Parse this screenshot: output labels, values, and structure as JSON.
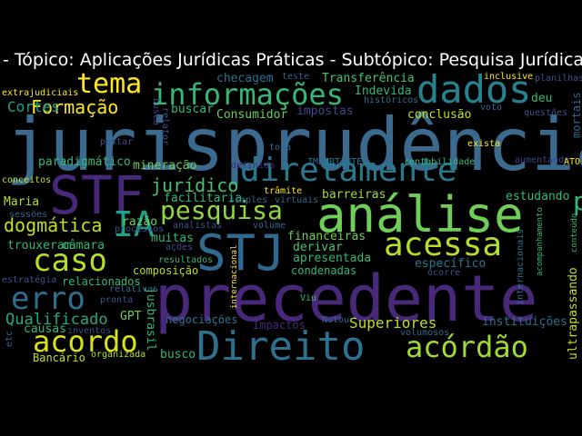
{
  "title": "- Tópico: Aplicações Jurídicas Práticas - Subtópico: Pesquisa Jurídica",
  "colors": {
    "background": "#000000",
    "title_text": "#ffffff",
    "palette": [
      "#3b528b",
      "#482878",
      "#26828e",
      "#35b779",
      "#6ece58",
      "#b5de2b",
      "#fde725",
      "#31688e"
    ]
  },
  "words": [
    {
      "text": "jurisprudência",
      "color": "#3b6a8f"
    },
    {
      "text": "precedente",
      "color": "#482878"
    },
    {
      "text": "análise",
      "color": "#6ece58"
    },
    {
      "text": "STF",
      "color": "#482878"
    },
    {
      "text": "STJ",
      "color": "#31688e"
    },
    {
      "text": "Direito",
      "color": "#2c728e"
    },
    {
      "text": "dados",
      "color": "#26828e"
    },
    {
      "text": "diretamente",
      "color": "#2a788e"
    },
    {
      "text": "informações",
      "color": "#35b779"
    },
    {
      "text": "acessa",
      "color": "#b5de2b"
    },
    {
      "text": "acordo",
      "color": "#d8e219"
    },
    {
      "text": "acórdão",
      "color": "#a0da39"
    },
    {
      "text": "caso",
      "color": "#b5de2b"
    },
    {
      "text": "erro",
      "color": "#2e6e8e"
    },
    {
      "text": "IA",
      "color": "#1fa188"
    },
    {
      "text": "tema",
      "color": "#fde725"
    },
    {
      "text": "pesquisa",
      "color": "#90d743"
    },
    {
      "text": "prompt",
      "color": "#35b779"
    },
    {
      "text": "jurídico",
      "color": "#4ac16d"
    },
    {
      "text": "dogmática",
      "color": "#c2df23"
    },
    {
      "text": "Formação",
      "color": "#fde725"
    },
    {
      "text": "Cortes",
      "color": "#1f9e89"
    },
    {
      "text": "Qualificado",
      "color": "#22a884"
    },
    {
      "text": "Superiores",
      "color": "#bddf26"
    },
    {
      "text": "Transferência",
      "color": "#4ac16d"
    },
    {
      "text": "Indevida",
      "color": "#35b779"
    },
    {
      "text": "checagem",
      "color": "#2c728e"
    },
    {
      "text": "teste",
      "color": "#355f8d"
    },
    {
      "text": "inclusive",
      "color": "#fde725"
    },
    {
      "text": "planilhas",
      "color": "#3b528b"
    },
    {
      "text": "extrajudiciais",
      "color": "#fde725"
    },
    {
      "text": "buscar",
      "color": "#35b779"
    },
    {
      "text": "Consumidor",
      "color": "#6ece58"
    },
    {
      "text": "impostas",
      "color": "#3e4a89"
    },
    {
      "text": "conclusão",
      "color": "#c2df23"
    },
    {
      "text": "voto",
      "color": "#31688e"
    },
    {
      "text": "questões",
      "color": "#3b528b"
    },
    {
      "text": "mortais",
      "color": "#31688e"
    },
    {
      "text": "deu",
      "color": "#35b779"
    },
    {
      "text": "históricos",
      "color": "#2c728e"
    },
    {
      "text": "busca",
      "color": "#414487"
    },
    {
      "text": "relator",
      "color": "#3b528b"
    },
    {
      "text": "postar",
      "color": "#3b528b"
    },
    {
      "text": "topa",
      "color": "#31688e"
    },
    {
      "text": "exista",
      "color": "#fde725"
    },
    {
      "text": "aumentando",
      "color": "#404688"
    },
    {
      "text": "paradigmático",
      "color": "#35b779"
    },
    {
      "text": "mineração",
      "color": "#6ece58"
    },
    {
      "text": "definido",
      "color": "#482878"
    },
    {
      "text": "IMPORTANTE",
      "color": "#2c728e"
    },
    {
      "text": "rentabilidade",
      "color": "#35b779"
    },
    {
      "text": "ATO",
      "color": "#fde725"
    },
    {
      "text": "conceitos",
      "color": "#c2df23"
    },
    {
      "text": "facilitaria",
      "color": "#35b779"
    },
    {
      "text": "trâmite",
      "color": "#fde725"
    },
    {
      "text": "simples",
      "color": "#31688e"
    },
    {
      "text": "virtuais",
      "color": "#31688e"
    },
    {
      "text": "barreiras",
      "color": "#a0da39"
    },
    {
      "text": "estudando",
      "color": "#35b779"
    },
    {
      "text": "Maria",
      "color": "#b5de2b"
    },
    {
      "text": "sessões",
      "color": "#31688e"
    },
    {
      "text": "razão",
      "color": "#6ece58"
    },
    {
      "text": "processos",
      "color": "#3b528b"
    },
    {
      "text": "analistas",
      "color": "#3b528b"
    },
    {
      "text": "volume",
      "color": "#31688e"
    },
    {
      "text": "financeiras",
      "color": "#6ece58"
    },
    {
      "text": "derivar",
      "color": "#4ac16d"
    },
    {
      "text": "apresentada",
      "color": "#35b779"
    },
    {
      "text": "específico",
      "color": "#2a788e"
    },
    {
      "text": "condenadas",
      "color": "#35b779"
    },
    {
      "text": "ocorre",
      "color": "#3b528b"
    },
    {
      "text": "trouxeram",
      "color": "#35b779"
    },
    {
      "text": "câmara",
      "color": "#35b779"
    },
    {
      "text": "muitas",
      "color": "#35b779"
    },
    {
      "text": "ações",
      "color": "#3b528b"
    },
    {
      "text": "resultados",
      "color": "#35b779"
    },
    {
      "text": "composição",
      "color": "#b5de2b"
    },
    {
      "text": "estratégia",
      "color": "#3b528b"
    },
    {
      "text": "relacionados",
      "color": "#35b779"
    },
    {
      "text": "relativas",
      "color": "#31688e"
    },
    {
      "text": "pronta",
      "color": "#3b528b"
    },
    {
      "text": "GPT",
      "color": "#6ece58"
    },
    {
      "text": "causas",
      "color": "#35b779"
    },
    {
      "text": "inventos",
      "color": "#3b528b"
    },
    {
      "text": "jusbrasil",
      "color": "#35b779"
    },
    {
      "text": "negociações",
      "color": "#2c728e"
    },
    {
      "text": "Impactos",
      "color": "#482878"
    },
    {
      "text": "Notou",
      "color": "#31688e"
    },
    {
      "text": "volumosos",
      "color": "#31688e"
    },
    {
      "text": "instituições",
      "color": "#2c728e"
    },
    {
      "text": "ultrapassando",
      "color": "#c2df23"
    },
    {
      "text": "conteúdo",
      "color": "#35b779"
    },
    {
      "text": "acompanhamento",
      "color": "#35b779"
    },
    {
      "text": "internacionais",
      "color": "#2c728e"
    },
    {
      "text": "internacional",
      "color": "#fde725"
    },
    {
      "text": "Viu",
      "color": "#35b779"
    },
    {
      "text": "etc",
      "color": "#31688e"
    },
    {
      "text": "Bancário",
      "color": "#c2df23"
    },
    {
      "text": "organizada",
      "color": "#b5de2b"
    },
    {
      "text": "busco",
      "color": "#35b779"
    }
  ]
}
